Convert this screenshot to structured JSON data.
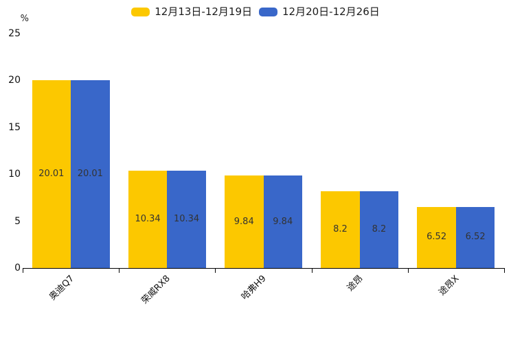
{
  "chart_data": {
    "type": "bar",
    "title": "",
    "unit_label": "%",
    "categories": [
      "奥迪Q7",
      "荣威RX8",
      "哈弗H9",
      "途昂",
      "途昂X"
    ],
    "series": [
      {
        "name": "12月13日-12月19日",
        "color": "#fcc800",
        "values": [
          20.01,
          10.34,
          9.84,
          8.2,
          6.52
        ]
      },
      {
        "name": "12月20日-12月26日",
        "color": "#3967c9",
        "values": [
          20.01,
          10.34,
          9.84,
          8.2,
          6.52
        ]
      }
    ],
    "ylim": [
      0,
      25
    ],
    "yticks": [
      0,
      5,
      10,
      15,
      20,
      25
    ],
    "grid": false,
    "legend_position": "top-center",
    "x_label_rotation_deg": -45,
    "value_label_position": "inside-center",
    "value_label_color": "#333333",
    "axis_color": "#000000",
    "background_color": "#ffffff"
  }
}
